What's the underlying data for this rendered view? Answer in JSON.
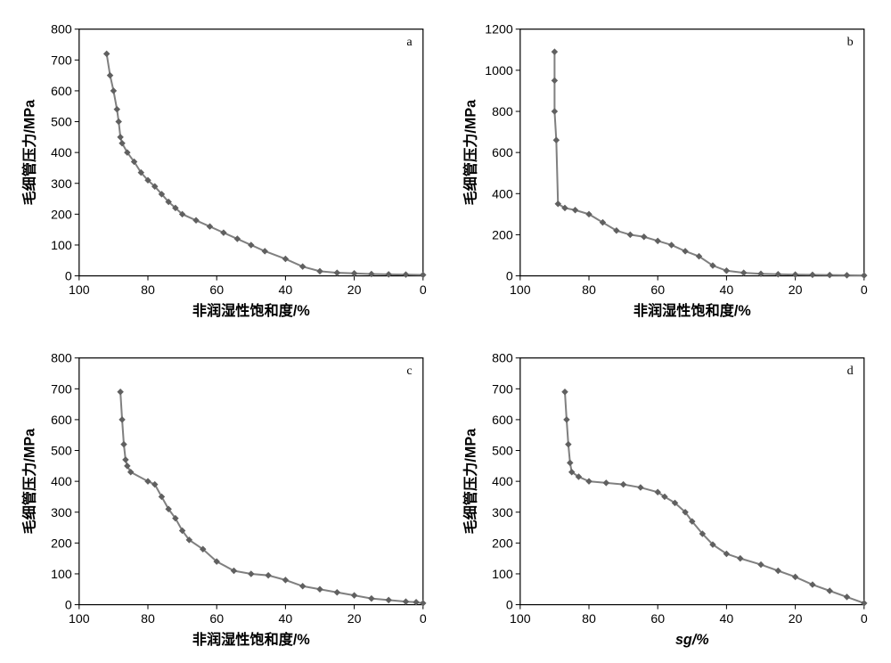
{
  "global": {
    "line_color": "#808080",
    "marker_color": "#606060",
    "axis_color": "#000000",
    "grid_color": "#c0c0c0",
    "background": "#ffffff",
    "line_width": 2,
    "marker_size": 3,
    "axis_fontsize": 14,
    "label_fontsize": 16,
    "panel_label_fontsize": 14
  },
  "panels": [
    {
      "id": "a",
      "label": "a",
      "ylabel": "毛细管压力/MPa",
      "xlabel": "非润湿性饱和度/%",
      "ylim": [
        0,
        800
      ],
      "ytick_step": 100,
      "xlim": [
        100,
        0
      ],
      "xtick_step": 20,
      "points": [
        [
          92,
          720
        ],
        [
          91,
          650
        ],
        [
          90,
          600
        ],
        [
          89,
          540
        ],
        [
          88.5,
          500
        ],
        [
          88,
          450
        ],
        [
          87.5,
          430
        ],
        [
          86,
          400
        ],
        [
          84,
          370
        ],
        [
          82,
          335
        ],
        [
          80,
          310
        ],
        [
          78,
          290
        ],
        [
          76,
          265
        ],
        [
          74,
          240
        ],
        [
          72,
          220
        ],
        [
          70,
          200
        ],
        [
          66,
          180
        ],
        [
          62,
          160
        ],
        [
          58,
          140
        ],
        [
          54,
          120
        ],
        [
          50,
          100
        ],
        [
          46,
          80
        ],
        [
          40,
          55
        ],
        [
          35,
          30
        ],
        [
          30,
          15
        ],
        [
          25,
          10
        ],
        [
          20,
          8
        ],
        [
          15,
          6
        ],
        [
          10,
          5
        ],
        [
          5,
          4
        ],
        [
          0,
          3
        ]
      ]
    },
    {
      "id": "b",
      "label": "b",
      "ylabel": "毛细管压力/MPa",
      "xlabel": "非润湿性饱和度/%",
      "ylim": [
        0,
        1200
      ],
      "ytick_step": 200,
      "xlim": [
        100,
        0
      ],
      "xtick_step": 20,
      "points": [
        [
          90,
          1090
        ],
        [
          90,
          950
        ],
        [
          90,
          800
        ],
        [
          89.5,
          660
        ],
        [
          89,
          350
        ],
        [
          87,
          330
        ],
        [
          84,
          320
        ],
        [
          80,
          300
        ],
        [
          76,
          260
        ],
        [
          72,
          220
        ],
        [
          68,
          200
        ],
        [
          64,
          190
        ],
        [
          60,
          170
        ],
        [
          56,
          150
        ],
        [
          52,
          120
        ],
        [
          48,
          95
        ],
        [
          44,
          50
        ],
        [
          40,
          25
        ],
        [
          35,
          15
        ],
        [
          30,
          10
        ],
        [
          25,
          8
        ],
        [
          20,
          6
        ],
        [
          15,
          5
        ],
        [
          10,
          4
        ],
        [
          5,
          3
        ],
        [
          0,
          2
        ]
      ]
    },
    {
      "id": "c",
      "label": "c",
      "ylabel": "毛细管压力/MPa",
      "xlabel": "非润湿性饱和度/%",
      "ylim": [
        0,
        800
      ],
      "ytick_step": 100,
      "xlim": [
        100,
        0
      ],
      "xtick_step": 20,
      "points": [
        [
          88,
          690
        ],
        [
          87.5,
          600
        ],
        [
          87,
          520
        ],
        [
          86.5,
          470
        ],
        [
          86,
          450
        ],
        [
          85,
          430
        ],
        [
          80,
          400
        ],
        [
          78,
          390
        ],
        [
          76,
          350
        ],
        [
          74,
          310
        ],
        [
          72,
          280
        ],
        [
          70,
          240
        ],
        [
          68,
          210
        ],
        [
          64,
          180
        ],
        [
          60,
          140
        ],
        [
          55,
          110
        ],
        [
          50,
          100
        ],
        [
          45,
          95
        ],
        [
          40,
          80
        ],
        [
          35,
          60
        ],
        [
          30,
          50
        ],
        [
          25,
          40
        ],
        [
          20,
          30
        ],
        [
          15,
          20
        ],
        [
          10,
          15
        ],
        [
          5,
          10
        ],
        [
          2,
          8
        ],
        [
          0,
          5
        ]
      ]
    },
    {
      "id": "d",
      "label": "d",
      "ylabel": "毛细管压力/MPa",
      "xlabel": "sg/%",
      "use_italic_x": true,
      "ylim": [
        0,
        800
      ],
      "ytick_step": 100,
      "xlim": [
        100,
        0
      ],
      "xtick_step": 20,
      "points": [
        [
          87,
          690
        ],
        [
          86.5,
          600
        ],
        [
          86,
          520
        ],
        [
          85.5,
          460
        ],
        [
          85,
          430
        ],
        [
          83,
          415
        ],
        [
          80,
          400
        ],
        [
          75,
          395
        ],
        [
          70,
          390
        ],
        [
          65,
          380
        ],
        [
          60,
          365
        ],
        [
          58,
          350
        ],
        [
          55,
          330
        ],
        [
          52,
          300
        ],
        [
          50,
          270
        ],
        [
          47,
          230
        ],
        [
          44,
          195
        ],
        [
          40,
          165
        ],
        [
          36,
          150
        ],
        [
          30,
          130
        ],
        [
          25,
          110
        ],
        [
          20,
          90
        ],
        [
          15,
          65
        ],
        [
          10,
          45
        ],
        [
          5,
          25
        ],
        [
          0,
          5
        ]
      ]
    }
  ]
}
